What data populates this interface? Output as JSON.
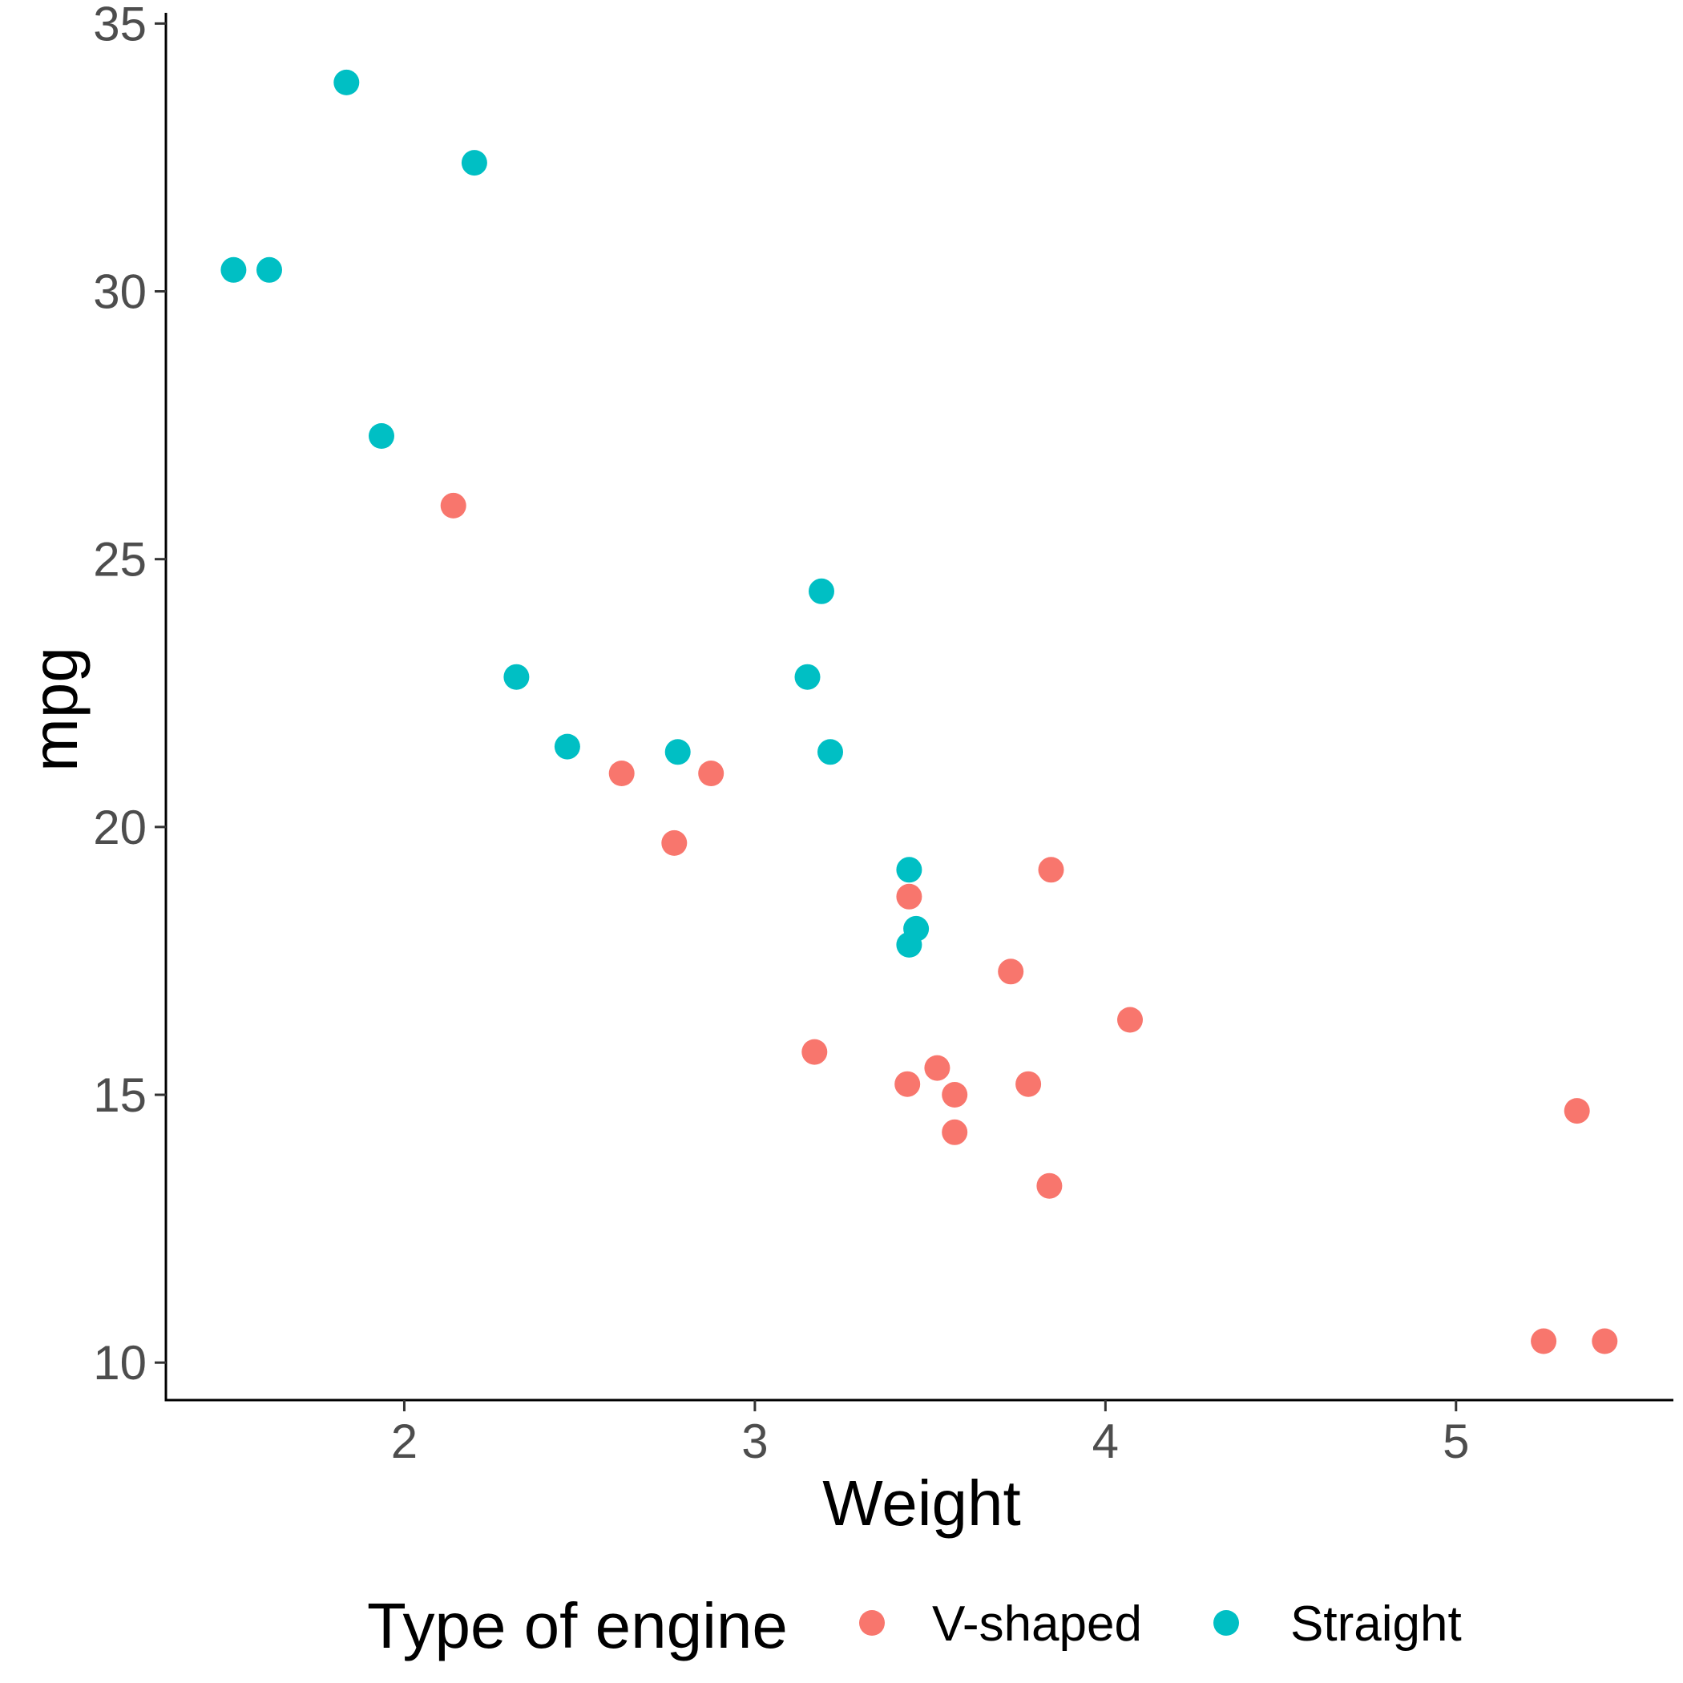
{
  "chart_data": {
    "type": "scatter",
    "xlabel": "Weight",
    "ylabel": "mpg",
    "xlim": [
      1.32,
      5.62
    ],
    "ylim": [
      9.3,
      35.2
    ],
    "x_ticks": [
      2,
      3,
      4,
      5
    ],
    "y_ticks": [
      10,
      15,
      20,
      25,
      30,
      35
    ],
    "grid": false,
    "legend": {
      "title": "Type of engine",
      "position": "bottom"
    },
    "series": [
      {
        "name": "V-shaped",
        "color": "#F8766D",
        "points": [
          {
            "x": 2.14,
            "y": 26.0
          },
          {
            "x": 2.62,
            "y": 21.0
          },
          {
            "x": 2.875,
            "y": 21.0
          },
          {
            "x": 2.77,
            "y": 19.7
          },
          {
            "x": 3.44,
            "y": 18.7
          },
          {
            "x": 3.845,
            "y": 19.2
          },
          {
            "x": 3.73,
            "y": 17.3
          },
          {
            "x": 4.07,
            "y": 16.4
          },
          {
            "x": 3.17,
            "y": 15.8
          },
          {
            "x": 3.435,
            "y": 15.2
          },
          {
            "x": 3.52,
            "y": 15.5
          },
          {
            "x": 3.57,
            "y": 15.0
          },
          {
            "x": 3.78,
            "y": 15.2
          },
          {
            "x": 3.57,
            "y": 14.3
          },
          {
            "x": 3.84,
            "y": 13.3
          },
          {
            "x": 5.345,
            "y": 14.7
          },
          {
            "x": 5.25,
            "y": 10.4
          },
          {
            "x": 5.424,
            "y": 10.4
          }
        ]
      },
      {
        "name": "Straight",
        "color": "#00BFC4",
        "points": [
          {
            "x": 1.835,
            "y": 33.9
          },
          {
            "x": 2.2,
            "y": 32.4
          },
          {
            "x": 1.513,
            "y": 30.4
          },
          {
            "x": 1.615,
            "y": 30.4
          },
          {
            "x": 1.935,
            "y": 27.3
          },
          {
            "x": 3.19,
            "y": 24.4
          },
          {
            "x": 2.32,
            "y": 22.8
          },
          {
            "x": 3.15,
            "y": 22.8
          },
          {
            "x": 2.465,
            "y": 21.5
          },
          {
            "x": 2.78,
            "y": 21.4
          },
          {
            "x": 3.215,
            "y": 21.4
          },
          {
            "x": 3.44,
            "y": 19.2
          },
          {
            "x": 3.46,
            "y": 18.1
          },
          {
            "x": 3.44,
            "y": 17.8
          }
        ]
      }
    ]
  }
}
